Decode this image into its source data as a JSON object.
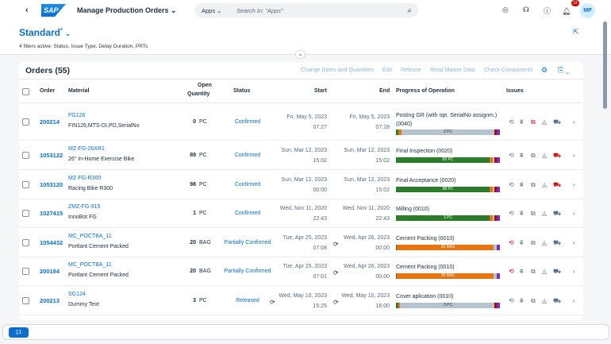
{
  "shell": {
    "back": "‹",
    "logo": "SAP",
    "title": "Manage Production Orders",
    "title_chevron": "⌄",
    "search_scope": "Apps",
    "search_placeholder": "Search In: \"Apps\"",
    "notification_count": "12",
    "avatar": "MP"
  },
  "header": {
    "variant": "Standard",
    "variant_modified": "*",
    "filters": "4 filters active: Status, Issue Type, Delay Duration, PRTs"
  },
  "table": {
    "title": "Orders (55)",
    "toolbar": [
      "Change Dates and Quantities",
      "Edit",
      "Release",
      "Read Master Data",
      "Check Components"
    ],
    "columns": {
      "order": "Order",
      "material": "Material",
      "open_qty_1": "Open",
      "open_qty_2": "Quantity",
      "status": "Status",
      "start": "Start",
      "end": "End",
      "progress": "Progress of Operation",
      "issues": "Issues"
    },
    "rows": [
      {
        "order": "200214",
        "material_id": "FG126",
        "material": "FIN126,MTS-DI,PD,SerialNo",
        "qty": "0",
        "unit": "PC",
        "status": "Confirmed",
        "start_date": "Fri, May 5, 2023",
        "start_time": "07:27",
        "end_date": "Fri, May 5, 2023",
        "end_time": "07:28",
        "operation": "Posting GR (with opt. SerialNo assignm.) (0040)",
        "bar_label": "2 PC",
        "segments": [
          [
            "#2b7d2b",
            2
          ],
          [
            "#e9730c",
            3
          ],
          [
            "#b6c2ce",
            90
          ],
          [
            "#aa0808",
            2
          ],
          [
            "#7b31b5",
            3
          ]
        ],
        "issue_colors": [
          "#556b82",
          "#556b82",
          "#d20a0a",
          "#556b82",
          "#556b82"
        ],
        "start_icon": false,
        "end_icon": false
      },
      {
        "order": "1053122",
        "material_id": "MZ-FG-26XR1",
        "material": "26\" In-Home Exercise Bike",
        "qty": "89",
        "unit": "PC",
        "status": "Confirmed",
        "start_date": "Sun, Mar 12, 2023",
        "start_time": "15:02",
        "end_date": "Sun, Mar 12, 2023",
        "end_time": "15:02",
        "operation": "Final Inspection (0020)",
        "bar_label": "89 PC",
        "segments": [
          [
            "#2b7d2b",
            90
          ],
          [
            "#e9730c",
            3
          ],
          [
            "#b6c2ce",
            2
          ],
          [
            "#aa0808",
            2
          ],
          [
            "#7b31b5",
            3
          ]
        ],
        "issue_colors": [
          "#556b82",
          "#556b82",
          "#556b82",
          "#556b82",
          "#d20a0a"
        ],
        "start_icon": false,
        "end_icon": false
      },
      {
        "order": "1053120",
        "material_id": "MZ-FG-R300",
        "material": "Racing Bike R300",
        "qty": "98",
        "unit": "PC",
        "status": "Confirmed",
        "start_date": "Sun, Mar 12, 2023",
        "start_time": "00:00",
        "end_date": "Sun, Mar 12, 2023",
        "end_time": "15:02",
        "operation": "Final Acceptance (0020)",
        "bar_label": "98 PC",
        "segments": [
          [
            "#2b7d2b",
            90
          ],
          [
            "#e9730c",
            3
          ],
          [
            "#b6c2ce",
            2
          ],
          [
            "#aa0808",
            2
          ],
          [
            "#7b31b5",
            3
          ]
        ],
        "issue_colors": [
          "#556b82",
          "#556b82",
          "#556b82",
          "#556b82",
          "#d20a0a"
        ],
        "start_icon": false,
        "end_icon": false
      },
      {
        "order": "1027415",
        "material_id": "ZMZ-FG-915",
        "material": "InnoBot FG",
        "qty": "1",
        "unit": "PC",
        "status": "Confirmed",
        "start_date": "Wed, Nov 11, 2020",
        "start_time": "22:43",
        "end_date": "Wed, Nov 11, 2020",
        "end_time": "22:43",
        "operation": "Milling (0010)",
        "bar_label": "1 PC",
        "segments": [
          [
            "#2b7d2b",
            90
          ],
          [
            "#e9730c",
            3
          ],
          [
            "#b6c2ce",
            2
          ],
          [
            "#aa0808",
            2
          ],
          [
            "#7b31b5",
            3
          ]
        ],
        "issue_colors": [
          "#556b82",
          "#556b82",
          "#556b82",
          "#556b82",
          "#556b82"
        ],
        "start_icon": false,
        "end_icon": false
      },
      {
        "order": "1054432",
        "material_id": "MC_POCTBA_11",
        "material": "Portlant Cement Packed",
        "qty": "20",
        "unit": "BAG",
        "status": "Partially Confirmed",
        "start_date": "Tue, Apr 25, 2023",
        "start_time": "07:08",
        "end_date": "Wed, Apr 26, 2023",
        "end_time": "00:00",
        "operation": "Cement Packing (0010)",
        "bar_label": "20 BAG",
        "segments": [
          [
            "#2b7d2b",
            1
          ],
          [
            "#e9730c",
            93
          ],
          [
            "#b6c2ce",
            3
          ],
          [
            "#7b31b5",
            3
          ]
        ],
        "issue_colors": [
          "#d20a0a",
          "#556b82",
          "#556b82",
          "#556b82",
          "#556b82"
        ],
        "start_icon": false,
        "end_icon": true
      },
      {
        "order": "200184",
        "material_id": "MC_POCTBA_11",
        "material": "Portlant Cement Packed",
        "qty": "20",
        "unit": "BAG",
        "status": "Partially Confirmed",
        "start_date": "Tue, Apr 25, 2023",
        "start_time": "07:01",
        "end_date": "Wed, Apr 26, 2023",
        "end_time": "00:00",
        "operation": "Cement Packing (0010)",
        "bar_label": "20 BAG",
        "segments": [
          [
            "#2b7d2b",
            1
          ],
          [
            "#e9730c",
            93
          ],
          [
            "#b6c2ce",
            3
          ],
          [
            "#7b31b5",
            3
          ]
        ],
        "issue_colors": [
          "#d20a0a",
          "#556b82",
          "#556b82",
          "#556b82",
          "#556b82"
        ],
        "start_icon": false,
        "end_icon": true
      },
      {
        "order": "200213",
        "material_id": "SG124",
        "material": "Dummy Text",
        "qty": "3",
        "unit": "PC",
        "status": "Released",
        "start_date": "Wed, May 10, 2023",
        "start_time": "15:25",
        "end_date": "Wed, May 10, 2023",
        "end_time": "16:00",
        "operation": "Cover aplication (0010)",
        "bar_label": "3 PC",
        "segments": [
          [
            "#2b7d2b",
            2
          ],
          [
            "#e9730c",
            2
          ],
          [
            "#b6c2ce",
            91
          ],
          [
            "#aa0808",
            2
          ],
          [
            "#7b31b5",
            3
          ]
        ],
        "issue_colors": [
          "#556b82",
          "#556b82",
          "#556b82",
          "#556b82",
          "#556b82"
        ],
        "start_icon": true,
        "end_icon": true
      }
    ]
  },
  "footer": {
    "messages": "1"
  }
}
